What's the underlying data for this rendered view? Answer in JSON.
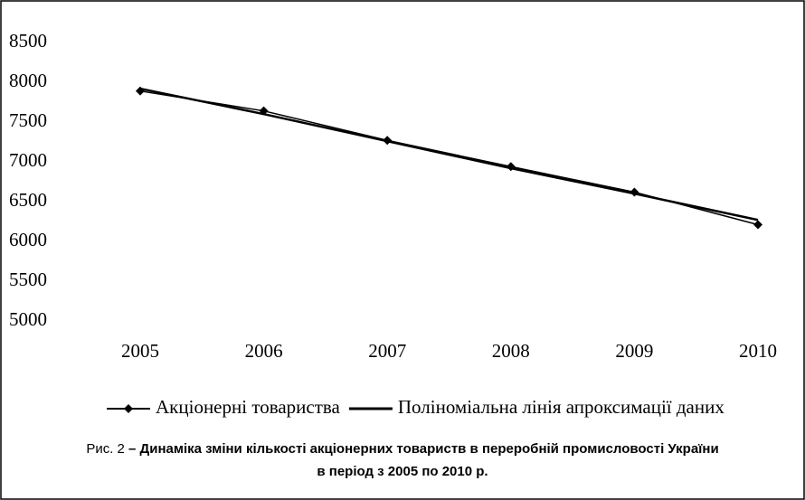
{
  "chart_data": {
    "type": "line",
    "x": [
      2005,
      2006,
      2007,
      2008,
      2009,
      2010
    ],
    "xlim": [
      2005,
      2010
    ],
    "series": [
      {
        "name": "Акціонерні товариства",
        "color": "#000000",
        "marker": "diamond",
        "values": [
          7890,
          7640,
          7270,
          6940,
          6620,
          6210
        ]
      },
      {
        "name": "Поліноміальна лінія апроксимації даних",
        "color": "#000000",
        "values": [
          7920,
          7600,
          7260,
          6920,
          6600,
          6270
        ]
      }
    ],
    "ylim": [
      5000,
      8500
    ],
    "yticks": [
      5000,
      5500,
      6000,
      6500,
      7000,
      7500,
      8000,
      8500
    ],
    "grid": false,
    "legend": "bottom",
    "caption": {
      "label": "Рис. 2",
      "lines": [
        "– Динаміка зміни кількості акціонерних товариств в переробній промисловості України",
        "в період з 2005 по 2010 р."
      ]
    }
  }
}
